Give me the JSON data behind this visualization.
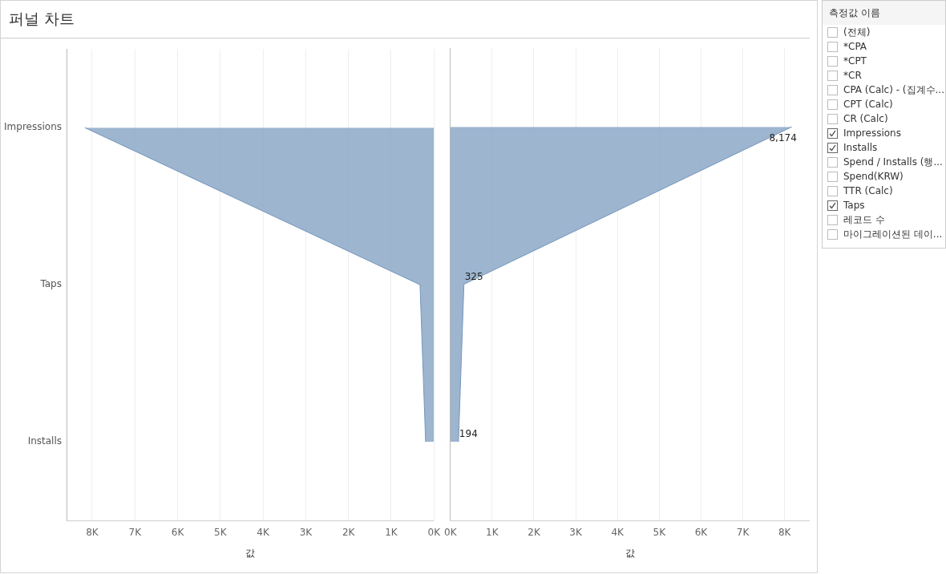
{
  "chart_data": [
    {
      "type": "area",
      "title": "퍼널 차트",
      "orientation": "horizontal",
      "categories": [
        "Impressions",
        "Taps",
        "Installs"
      ],
      "series": [
        {
          "color": "#8fabc8",
          "values": [
            8174,
            325,
            194
          ]
        }
      ],
      "xlabel": "값",
      "xlim": [
        8600,
        0
      ],
      "xticks": [
        {
          "value": 8000,
          "label": "8K"
        },
        {
          "value": 7000,
          "label": "7K"
        },
        {
          "value": 6000,
          "label": "6K"
        },
        {
          "value": 5000,
          "label": "5K"
        },
        {
          "value": 4000,
          "label": "4K"
        },
        {
          "value": 3000,
          "label": "3K"
        },
        {
          "value": 2000,
          "label": "2K"
        },
        {
          "value": 1000,
          "label": "1K"
        },
        {
          "value": 0,
          "label": "0K"
        }
      ],
      "grid": "x"
    },
    {
      "type": "area",
      "orientation": "horizontal",
      "categories": [
        null,
        null,
        null
      ],
      "series": [
        {
          "color": "#8fabc8",
          "values": [
            8174,
            325,
            194
          ],
          "value_labels": [
            "8,174",
            "325",
            "194"
          ]
        }
      ],
      "xlabel": "값",
      "xlim": [
        0,
        8600
      ],
      "xticks": [
        {
          "value": 0,
          "label": "0K"
        },
        {
          "value": 1000,
          "label": "1K"
        },
        {
          "value": 2000,
          "label": "2K"
        },
        {
          "value": 3000,
          "label": "3K"
        },
        {
          "value": 4000,
          "label": "4K"
        },
        {
          "value": 5000,
          "label": "5K"
        },
        {
          "value": 6000,
          "label": "6K"
        },
        {
          "value": 7000,
          "label": "7K"
        },
        {
          "value": 8000,
          "label": "8K"
        }
      ],
      "grid": "x",
      "tick_labels": "x"
    },
    {
      "type": "other",
      "title": "측정값 이름",
      "annotations": [
        "(전체)",
        "*CPA",
        "*CPT",
        "*CR",
        "CPA (Calc) - (집계수...",
        "CPT (Calc)",
        "CR (Calc)",
        "Impressions",
        "Installs",
        "Spend / Installs (행...",
        "Spend(KRW)",
        "TTR (Calc)",
        "Taps",
        "레코드 수",
        "마이그레이션된 데이..."
      ]
    }
  ]
}
